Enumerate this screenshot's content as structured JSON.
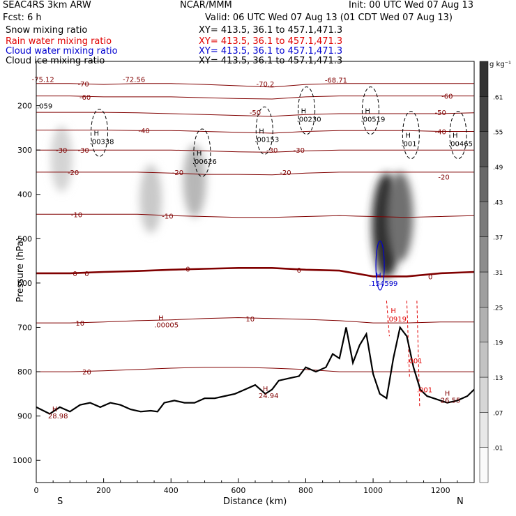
{
  "header": {
    "model": "SEAC4RS   3km ARW",
    "org": "NCAR/MMM",
    "init": "Init: 00 UTC Wed 07 Aug 13",
    "fcst": "Fcst:    6 h",
    "valid": "Valid: 06 UTC Wed 07 Aug 13 (01 CDT Wed 07 Aug 13)",
    "fields": [
      {
        "label": "Snow mixing ratio",
        "xy": "XY= 413.5, 36.1 to 457.1,471.3",
        "color": "#000000"
      },
      {
        "label": "Rain water mixing ratio",
        "xy": "XY= 413.5, 36.1 to 457.1,471.3",
        "color": "#e00000"
      },
      {
        "label": "Cloud water mixing ratio",
        "xy": "XY= 413.5, 36.1 to 457.1,471.3",
        "color": "#0000d0"
      },
      {
        "label": "Cloud ice mixing ratio",
        "xy": "XY= 413.5, 36.1 to 457.1,471.3",
        "color": "#000000"
      }
    ]
  },
  "colors": {
    "temperature": "#800000",
    "zero_isotherm": "#800000",
    "terrain": "#000000",
    "rain": "#e00000",
    "cloud_water": "#0000d0",
    "cloud_ice": "#000000"
  },
  "chart_data": {
    "type": "heatmap",
    "xlabel": "Distance (km)",
    "ylabel": "Pressure (hPa)",
    "xlim": [
      0,
      1300
    ],
    "ylim": [
      1050,
      100
    ],
    "xticks": [
      0,
      200,
      400,
      600,
      800,
      1000,
      1200
    ],
    "yticks": [
      200,
      300,
      400,
      500,
      600,
      700,
      800,
      900,
      1000
    ],
    "endpoints": {
      "left": "S",
      "right": "N"
    },
    "colorbar": {
      "unit": "g kg⁻¹",
      "levels": [
        ".01",
        ".07",
        ".13",
        ".19",
        ".25",
        ".31",
        ".37",
        ".43",
        ".49",
        ".55",
        ".61"
      ]
    },
    "snow_cores": [
      {
        "x": 75,
        "p": 320,
        "value": 0.12
      },
      {
        "x": 340,
        "p": 410,
        "value": 0.15
      },
      {
        "x": 470,
        "p": 370,
        "value": 0.2
      },
      {
        "x": 1040,
        "p": 470,
        "value": 0.58
      },
      {
        "x": 1080,
        "p": 450,
        "value": 0.4
      }
    ],
    "temperature_isotherms": [
      {
        "t": -70,
        "p": [
          150,
          150,
          152,
          150,
          150,
          152,
          155,
          158,
          152,
          150,
          150,
          150,
          150,
          150
        ]
      },
      {
        "t": -60,
        "p": [
          178,
          178,
          180,
          180,
          180,
          182,
          184,
          185,
          180,
          178,
          178,
          178,
          178,
          178
        ]
      },
      {
        "t": -50,
        "p": [
          215,
          215,
          215,
          216,
          218,
          220,
          222,
          224,
          220,
          218,
          218,
          218,
          218,
          216
        ]
      },
      {
        "t": -40,
        "p": [
          255,
          255,
          255,
          256,
          256,
          258,
          260,
          262,
          258,
          256,
          256,
          256,
          258,
          258
        ]
      },
      {
        "t": -30,
        "p": [
          300,
          300,
          300,
          300,
          300,
          302,
          304,
          305,
          302,
          300,
          300,
          300,
          300,
          300
        ]
      },
      {
        "t": -20,
        "p": [
          350,
          350,
          350,
          350,
          352,
          355,
          355,
          356,
          352,
          350,
          350,
          350,
          350,
          350
        ]
      },
      {
        "t": -10,
        "p": [
          445,
          445,
          445,
          445,
          448,
          450,
          452,
          452,
          450,
          448,
          450,
          452,
          450,
          448
        ]
      },
      {
        "t": 0,
        "p": [
          578,
          578,
          575,
          573,
          570,
          568,
          566,
          566,
          570,
          572,
          585,
          585,
          578,
          575
        ]
      },
      {
        "t": 10,
        "p": [
          690,
          690,
          688,
          685,
          683,
          680,
          678,
          680,
          682,
          685,
          690,
          690,
          688,
          688
        ]
      },
      {
        "t": 20,
        "p": [
          800,
          800,
          798,
          795,
          792,
          790,
          790,
          792,
          795,
          800,
          800,
          800,
          800,
          800
        ]
      }
    ],
    "temperature_labels": [
      {
        "text": "-72.56",
        "x": 290,
        "p": 140
      },
      {
        "text": "-75.12",
        "x": 20,
        "p": 140
      },
      {
        "text": "-70",
        "x": 140,
        "p": 150
      },
      {
        "text": "-70.2",
        "x": 680,
        "p": 150
      },
      {
        "text": "-68.71",
        "x": 890,
        "p": 142
      },
      {
        "text": "-60",
        "x": 145,
        "p": 180
      },
      {
        "text": "-60",
        "x": 1220,
        "p": 178
      },
      {
        "text": "-50",
        "x": 650,
        "p": 215
      },
      {
        "text": "-50",
        "x": 1200,
        "p": 215
      },
      {
        "text": "-40",
        "x": 320,
        "p": 256
      },
      {
        "text": "-40",
        "x": 1200,
        "p": 258
      },
      {
        "text": "-30",
        "x": 75,
        "p": 300
      },
      {
        "text": "-30",
        "x": 140,
        "p": 300
      },
      {
        "text": "-30",
        "x": 700,
        "p": 300
      },
      {
        "text": "-30",
        "x": 780,
        "p": 300
      },
      {
        "text": "-20",
        "x": 110,
        "p": 350
      },
      {
        "text": "-20",
        "x": 420,
        "p": 350
      },
      {
        "text": "-20",
        "x": 740,
        "p": 350
      },
      {
        "text": "-20",
        "x": 1210,
        "p": 360
      },
      {
        "text": "-10",
        "x": 120,
        "p": 445
      },
      {
        "text": "-10",
        "x": 390,
        "p": 448
      },
      {
        "text": "0",
        "x": 115,
        "p": 578
      },
      {
        "text": "0",
        "x": 150,
        "p": 578
      },
      {
        "text": "0",
        "x": 450,
        "p": 568
      },
      {
        "text": "0",
        "x": 780,
        "p": 570
      },
      {
        "text": "0",
        "x": 1170,
        "p": 585
      },
      {
        "text": "10",
        "x": 130,
        "p": 690
      },
      {
        "text": "10",
        "x": 635,
        "p": 680
      },
      {
        "text": "20",
        "x": 150,
        "p": 800
      }
    ],
    "cloud_ice_maxima": [
      {
        "value": ".00338",
        "x": 175,
        "p": 280
      },
      {
        "value": ".00626",
        "x": 480,
        "p": 325
      },
      {
        "value": ".00153",
        "x": 665,
        "p": 275
      },
      {
        "value": ".00230",
        "x": 790,
        "p": 230
      },
      {
        "value": ".00519",
        "x": 980,
        "p": 230
      },
      {
        "value": ".001",
        "x": 1100,
        "p": 285
      },
      {
        "value": ".00465",
        "x": 1240,
        "p": 285
      }
    ],
    "cloud_ice_left_value": ".059",
    "cloud_water_maximum": {
      "value": ".154599",
      "x": 1000,
      "p": 600
    },
    "rain_maxima": [
      {
        "value": ".0919",
        "x": 1040,
        "p": 680
      },
      {
        "value": ".001",
        "x": 1100,
        "p": 775
      },
      {
        "value": ".001",
        "x": 1130,
        "p": 840
      }
    ],
    "temperature_maxima": [
      {
        "value": ".00005",
        "x": 350,
        "p": 700
      },
      {
        "value": "24.94",
        "x": 660,
        "p": 860
      },
      {
        "value": "26.55",
        "x": 1200,
        "p": 870
      },
      {
        "value": "28.98",
        "x": 35,
        "p": 905
      }
    ],
    "terrain_pressure": {
      "x": [
        0,
        40,
        70,
        100,
        130,
        160,
        190,
        220,
        250,
        280,
        310,
        340,
        360,
        380,
        410,
        440,
        470,
        500,
        530,
        560,
        590,
        620,
        650,
        680,
        700,
        720,
        750,
        780,
        800,
        830,
        860,
        880,
        900,
        920,
        940,
        960,
        980,
        1000,
        1020,
        1040,
        1060,
        1080,
        1100,
        1120,
        1140,
        1160,
        1180,
        1200,
        1220,
        1250,
        1280,
        1300
      ],
      "p": [
        880,
        895,
        880,
        890,
        875,
        870,
        880,
        870,
        875,
        885,
        890,
        888,
        890,
        870,
        865,
        870,
        870,
        860,
        860,
        855,
        850,
        840,
        830,
        850,
        840,
        820,
        815,
        810,
        790,
        800,
        790,
        760,
        770,
        700,
        780,
        740,
        715,
        805,
        850,
        860,
        770,
        700,
        720,
        790,
        840,
        855,
        860,
        865,
        870,
        865,
        855,
        840
      ]
    }
  }
}
